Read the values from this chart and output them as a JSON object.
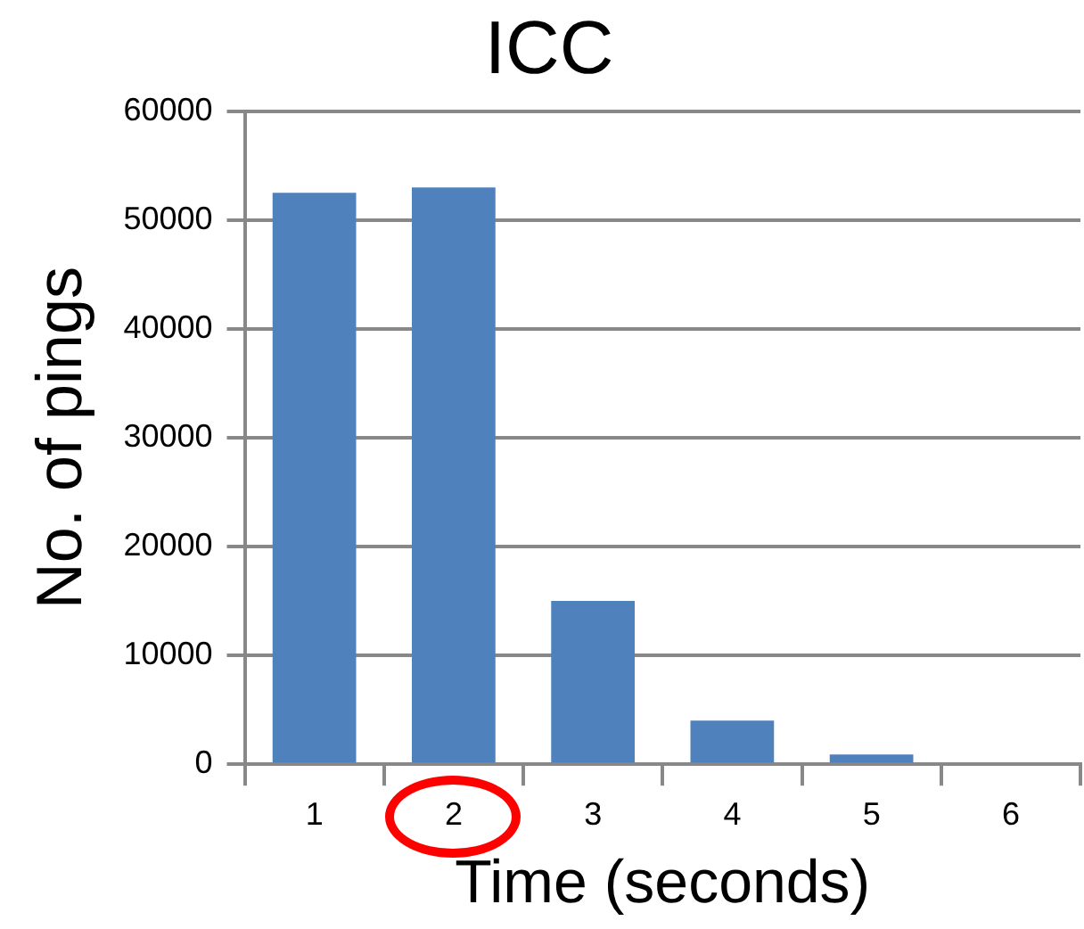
{
  "chart_data": {
    "type": "bar",
    "title": "ICC",
    "xlabel": "Time (seconds)",
    "ylabel": "No. of pings",
    "categories": [
      "1",
      "2",
      "3",
      "4",
      "5",
      "6"
    ],
    "values": [
      52500,
      53000,
      15000,
      4000,
      900,
      0
    ],
    "color": "#4f81bd",
    "ylim": [
      0,
      60000
    ],
    "yticks": [
      0,
      10000,
      20000,
      30000,
      40000,
      50000,
      60000
    ],
    "grid": "y",
    "legend": false
  }
}
